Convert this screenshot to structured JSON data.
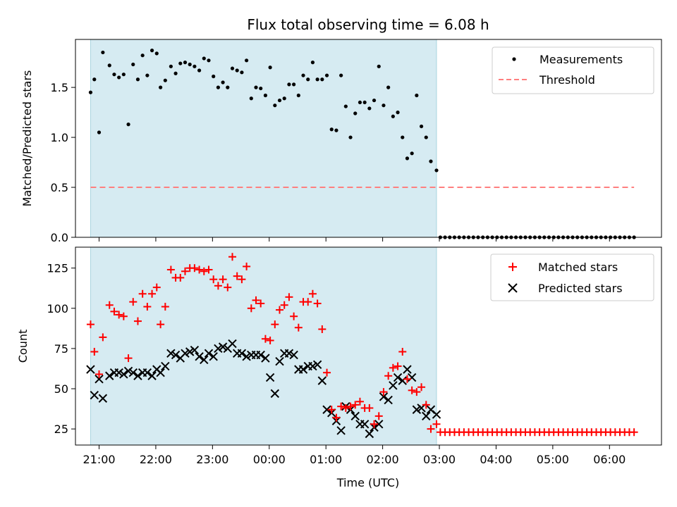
{
  "chart_data": [
    {
      "type": "scatter",
      "title": "Flux total observing time = 6.08 h",
      "xlabel": "",
      "ylabel": "Matched/Predicted stars",
      "xlim": [
        "20:35",
        "06:55"
      ],
      "ylim": [
        0,
        1.98
      ],
      "yticks": [
        "0.0",
        "0.5",
        "1.0",
        "1.5"
      ],
      "ytick_values": [
        0,
        0.5,
        1.0,
        1.5
      ],
      "xtick_values": [
        "21:00",
        "22:00",
        "23:00",
        "00:00",
        "01:00",
        "02:00",
        "03:00",
        "04:00",
        "05:00",
        "06:00"
      ],
      "shaded_span": [
        "20:51",
        "02:57"
      ],
      "legend": {
        "placement": "upper-right",
        "entries": [
          "Measurements",
          "Threshold"
        ]
      },
      "series": [
        {
          "name": "Measurements",
          "marker": "dot",
          "color": "#000000",
          "x": [
            "20:51",
            "20:55",
            "21:00",
            "21:04",
            "21:11",
            "21:16",
            "21:21",
            "21:26",
            "21:31",
            "21:36",
            "21:41",
            "21:46",
            "21:51",
            "21:56",
            "22:01",
            "22:05",
            "22:10",
            "22:16",
            "22:21",
            "22:26",
            "22:31",
            "22:36",
            "22:41",
            "22:46",
            "22:51",
            "22:56",
            "23:01",
            "23:06",
            "23:11",
            "23:16",
            "23:21",
            "23:26",
            "23:31",
            "23:36",
            "23:41",
            "23:46",
            "23:51",
            "23:56",
            "00:01",
            "00:06",
            "00:11",
            "00:16",
            "00:21",
            "00:26",
            "00:31",
            "00:36",
            "00:41",
            "00:46",
            "00:51",
            "00:56",
            "01:01",
            "01:06",
            "01:11",
            "01:16",
            "01:21",
            "01:26",
            "01:31",
            "01:36",
            "01:41",
            "01:46",
            "01:51",
            "01:56",
            "02:01",
            "02:06",
            "02:11",
            "02:16",
            "02:21",
            "02:26",
            "02:31",
            "02:36",
            "02:41",
            "02:46",
            "02:51",
            "02:57",
            "03:01",
            "03:06",
            "03:11",
            "03:16",
            "03:21",
            "03:26",
            "03:31",
            "03:36",
            "03:41",
            "03:46",
            "03:51",
            "03:56",
            "04:01",
            "04:06",
            "04:11",
            "04:16",
            "04:21",
            "04:26",
            "04:31",
            "04:36",
            "04:41",
            "04:46",
            "04:51",
            "04:56",
            "05:01",
            "05:06",
            "05:11",
            "05:16",
            "05:21",
            "05:26",
            "05:31",
            "05:36",
            "05:41",
            "05:46",
            "05:51",
            "05:56",
            "06:01",
            "06:06",
            "06:11",
            "06:16",
            "06:21",
            "06:26"
          ],
          "y": [
            1.45,
            1.58,
            1.05,
            1.85,
            1.72,
            1.63,
            1.6,
            1.63,
            1.13,
            1.73,
            1.58,
            1.82,
            1.62,
            1.87,
            1.84,
            1.5,
            1.57,
            1.71,
            1.64,
            1.74,
            1.75,
            1.73,
            1.71,
            1.67,
            1.79,
            1.77,
            1.61,
            1.5,
            1.55,
            1.5,
            1.69,
            1.67,
            1.65,
            1.77,
            1.39,
            1.5,
            1.49,
            1.42,
            1.7,
            1.32,
            1.37,
            1.39,
            1.53,
            1.53,
            1.42,
            1.62,
            1.58,
            1.75,
            1.58,
            1.58,
            1.62,
            1.08,
            1.07,
            1.62,
            1.31,
            1.0,
            1.24,
            1.35,
            1.35,
            1.29,
            1.37,
            1.71,
            1.32,
            1.5,
            1.21,
            1.25,
            1.0,
            0.79,
            0.84,
            1.42,
            1.11,
            1.0,
            0.76,
            0.67,
            0.0,
            0.0,
            0.0,
            0.0,
            0.0,
            0.0,
            0.0,
            0.0,
            0.0,
            0.0,
            0.0,
            0.0,
            0.0,
            0.0,
            0.0,
            0.0,
            0.0,
            0.0,
            0.0,
            0.0,
            0.0,
            0.0,
            0.0,
            0.0,
            0.0,
            0.0,
            0.0,
            0.0,
            0.0,
            0.0,
            0.0,
            0.0,
            0.0,
            0.0,
            0.0,
            0.0,
            0.0,
            0.0,
            0.0,
            0.0,
            0.0,
            0.0
          ]
        },
        {
          "name": "Threshold",
          "marker": "dashed-line",
          "color": "#ff7f7f",
          "x": [
            "20:51",
            "06:26"
          ],
          "y": [
            0.5,
            0.5
          ]
        }
      ]
    },
    {
      "type": "scatter",
      "title": "",
      "xlabel": "Time (UTC)",
      "ylabel": "Count",
      "xlim": [
        "20:35",
        "06:55"
      ],
      "ylim": [
        15,
        138
      ],
      "yticks": [
        "25",
        "50",
        "75",
        "100",
        "125"
      ],
      "ytick_values": [
        25,
        50,
        75,
        100,
        125
      ],
      "xticks": [
        "21:00",
        "22:00",
        "23:00",
        "00:00",
        "01:00",
        "02:00",
        "03:00",
        "04:00",
        "05:00",
        "06:00"
      ],
      "xtick_values": [
        "21:00",
        "22:00",
        "23:00",
        "00:00",
        "01:00",
        "02:00",
        "03:00",
        "04:00",
        "05:00",
        "06:00"
      ],
      "shaded_span": [
        "20:51",
        "02:57"
      ],
      "legend": {
        "placement": "upper-right",
        "entries": [
          "Matched stars",
          "Predicted stars"
        ]
      },
      "series": [
        {
          "name": "Matched stars",
          "marker": "plus",
          "color": "#ff0000",
          "x": [
            "20:51",
            "20:55",
            "21:00",
            "21:04",
            "21:11",
            "21:16",
            "21:21",
            "21:26",
            "21:31",
            "21:36",
            "21:41",
            "21:46",
            "21:51",
            "21:56",
            "22:01",
            "22:05",
            "22:10",
            "22:16",
            "22:21",
            "22:26",
            "22:31",
            "22:36",
            "22:41",
            "22:46",
            "22:51",
            "22:56",
            "23:01",
            "23:06",
            "23:11",
            "23:16",
            "23:21",
            "23:26",
            "23:31",
            "23:36",
            "23:41",
            "23:46",
            "23:51",
            "23:56",
            "00:01",
            "00:06",
            "00:11",
            "00:16",
            "00:21",
            "00:26",
            "00:31",
            "00:36",
            "00:41",
            "00:46",
            "00:51",
            "00:56",
            "01:01",
            "01:06",
            "01:11",
            "01:16",
            "01:21",
            "01:26",
            "01:31",
            "01:36",
            "01:41",
            "01:46",
            "01:51",
            "01:56",
            "02:01",
            "02:06",
            "02:11",
            "02:16",
            "02:21",
            "02:26",
            "02:31",
            "02:36",
            "02:41",
            "02:46",
            "02:51",
            "02:57",
            "03:01",
            "03:06",
            "03:11",
            "03:16",
            "03:21",
            "03:26",
            "03:31",
            "03:36",
            "03:41",
            "03:46",
            "03:51",
            "03:56",
            "04:01",
            "04:06",
            "04:11",
            "04:16",
            "04:21",
            "04:26",
            "04:31",
            "04:36",
            "04:41",
            "04:46",
            "04:51",
            "04:56",
            "05:01",
            "05:06",
            "05:11",
            "05:16",
            "05:21",
            "05:26",
            "05:31",
            "05:36",
            "05:41",
            "05:46",
            "05:51",
            "05:56",
            "06:01",
            "06:06",
            "06:11",
            "06:16",
            "06:21",
            "06:26"
          ],
          "y": [
            90,
            73,
            59,
            82,
            102,
            98,
            96,
            95,
            69,
            104,
            92,
            109,
            101,
            109,
            113,
            90,
            101,
            124,
            119,
            119,
            123,
            125,
            125,
            124,
            123,
            124,
            118,
            114,
            118,
            113,
            132,
            120,
            118,
            126,
            100,
            105,
            103,
            81,
            80,
            90,
            99,
            102,
            107,
            95,
            88,
            104,
            104,
            109,
            103,
            87,
            60,
            37,
            32,
            39,
            38,
            39,
            40,
            42,
            38,
            38,
            28,
            33,
            48,
            58,
            63,
            64,
            73,
            56,
            49,
            48,
            51,
            40,
            25,
            28,
            23,
            23,
            23,
            23,
            23,
            23,
            23,
            23,
            23,
            23,
            23,
            23,
            23,
            23,
            23,
            23,
            23,
            23,
            23,
            23,
            23,
            23,
            23,
            23,
            23,
            23,
            23,
            23,
            23,
            23,
            23,
            23,
            23,
            23,
            23,
            23,
            23,
            23,
            23,
            23,
            23,
            23
          ]
        },
        {
          "name": "Predicted stars",
          "marker": "x",
          "color": "#000000",
          "x": [
            "20:51",
            "20:55",
            "21:00",
            "21:04",
            "21:11",
            "21:16",
            "21:21",
            "21:26",
            "21:31",
            "21:36",
            "21:41",
            "21:46",
            "21:51",
            "21:56",
            "22:01",
            "22:05",
            "22:10",
            "22:16",
            "22:21",
            "22:26",
            "22:31",
            "22:36",
            "22:41",
            "22:46",
            "22:51",
            "22:56",
            "23:01",
            "23:06",
            "23:11",
            "23:16",
            "23:21",
            "23:26",
            "23:31",
            "23:36",
            "23:41",
            "23:46",
            "23:51",
            "23:56",
            "00:01",
            "00:06",
            "00:11",
            "00:16",
            "00:21",
            "00:26",
            "00:31",
            "00:36",
            "00:41",
            "00:46",
            "00:51",
            "00:56",
            "01:01",
            "01:06",
            "01:11",
            "01:16",
            "01:21",
            "01:26",
            "01:31",
            "01:36",
            "01:41",
            "01:46",
            "01:51",
            "01:56",
            "02:01",
            "02:06",
            "02:11",
            "02:16",
            "02:21",
            "02:26",
            "02:31",
            "02:36",
            "02:41",
            "02:46",
            "02:51",
            "02:57"
          ],
          "y": [
            62,
            46,
            56,
            44,
            58,
            60,
            60,
            59,
            61,
            60,
            58,
            60,
            60,
            58,
            62,
            60,
            64,
            72,
            71,
            69,
            72,
            73,
            74,
            70,
            68,
            72,
            70,
            75,
            76,
            75,
            78,
            72,
            72,
            70,
            71,
            71,
            71,
            69,
            57,
            47,
            67,
            72,
            72,
            71,
            62,
            62,
            64,
            64,
            65,
            55,
            37,
            35,
            30,
            24,
            39,
            37,
            33,
            28,
            28,
            22,
            26,
            28,
            45,
            43,
            52,
            57,
            55,
            62,
            57,
            37,
            38,
            33,
            37,
            34
          ]
        }
      ]
    }
  ]
}
